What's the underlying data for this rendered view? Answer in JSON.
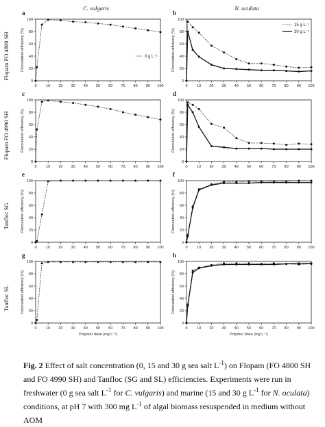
{
  "columns": [
    {
      "title": "C. vulgaris"
    },
    {
      "title": "N. oculata"
    }
  ],
  "rows": [
    {
      "label": "Flopam FO 4800 SH"
    },
    {
      "label": "Flopam FO 4990 SH"
    },
    {
      "label": "Tanfloc SG"
    },
    {
      "label": "Tanfloc SL"
    }
  ],
  "axes": {
    "ylabel": "Flocculation efficiency (%)",
    "xlabel": "Polymer dose (mg L⁻¹)",
    "x_ticks": [
      "0",
      "10",
      "20",
      "30",
      "40",
      "50",
      "60",
      "70",
      "80",
      "90",
      "100"
    ],
    "y_ticks": [
      "0",
      "20",
      "40",
      "60",
      "80",
      "100"
    ],
    "xlim": [
      0,
      100
    ],
    "ylim": [
      0,
      100
    ]
  },
  "legend_left": {
    "label": "0 g L⁻¹"
  },
  "legend_right": {
    "labels": [
      "15 g L⁻¹",
      "30 g L⁻¹"
    ]
  },
  "chart_data": [
    {
      "id": "a",
      "type": "line",
      "title": "C. vulgaris",
      "series": [
        {
          "name": "0 g L⁻¹",
          "style": "dotted",
          "x": [
            0,
            1,
            5,
            10,
            20,
            30,
            40,
            50,
            60,
            70,
            80,
            90,
            100
          ],
          "y": [
            0,
            22,
            91,
            99,
            98,
            96,
            95,
            93,
            91,
            88,
            85,
            82,
            79
          ]
        }
      ]
    },
    {
      "id": "b",
      "type": "line",
      "title": "N. oculata",
      "series": [
        {
          "name": "15 g L⁻¹",
          "style": "dotted",
          "x": [
            0,
            1,
            5,
            10,
            20,
            30,
            40,
            50,
            60,
            70,
            80,
            90,
            100
          ],
          "y": [
            0,
            96,
            87,
            78,
            57,
            46,
            35,
            28,
            28,
            26,
            23,
            21,
            22
          ]
        },
        {
          "name": "30 g L⁻¹",
          "style": "solid",
          "x": [
            0,
            1,
            5,
            10,
            20,
            30,
            40,
            50,
            60,
            70,
            80,
            90,
            100
          ],
          "y": [
            0,
            80,
            50,
            39,
            26,
            20,
            19,
            18,
            17,
            17,
            16,
            15,
            16
          ]
        }
      ]
    },
    {
      "id": "c",
      "type": "line",
      "series": [
        {
          "name": "0 g L⁻¹",
          "style": "dotted",
          "x": [
            0,
            1,
            5,
            10,
            20,
            30,
            40,
            50,
            60,
            70,
            80,
            90,
            100
          ],
          "y": [
            0,
            52,
            97,
            99,
            97,
            95,
            92,
            89,
            85,
            80,
            76,
            72,
            68
          ]
        }
      ]
    },
    {
      "id": "d",
      "type": "line",
      "series": [
        {
          "name": "15 g L⁻¹",
          "style": "dotted",
          "x": [
            0,
            1,
            5,
            10,
            20,
            30,
            40,
            50,
            60,
            70,
            80,
            90,
            100
          ],
          "y": [
            0,
            96,
            92,
            85,
            61,
            55,
            38,
            30,
            30,
            29,
            27,
            29,
            28
          ]
        },
        {
          "name": "30 g L⁻¹",
          "style": "solid",
          "x": [
            0,
            1,
            5,
            10,
            20,
            30,
            40,
            50,
            60,
            70,
            80,
            90,
            100
          ],
          "y": [
            0,
            92,
            80,
            56,
            25,
            23,
            21,
            21,
            21,
            20,
            20,
            20,
            20
          ]
        }
      ]
    },
    {
      "id": "e",
      "type": "line",
      "series": [
        {
          "name": "0 g L⁻¹",
          "style": "dotted",
          "x": [
            0,
            1,
            5,
            10,
            20,
            30,
            40,
            50,
            60,
            70,
            80,
            90,
            100
          ],
          "y": [
            0,
            2,
            45,
            99,
            100,
            100,
            100,
            100,
            100,
            100,
            100,
            100,
            100
          ]
        }
      ]
    },
    {
      "id": "f",
      "type": "line",
      "series": [
        {
          "name": "15 g L⁻¹",
          "style": "dotted",
          "x": [
            0,
            1,
            5,
            10,
            20,
            30,
            40,
            50,
            60,
            70,
            80,
            90,
            100
          ],
          "y": [
            0,
            12,
            58,
            86,
            94,
            98,
            98,
            99,
            99,
            99,
            99,
            100,
            100
          ]
        },
        {
          "name": "30 g L⁻¹",
          "style": "solid",
          "x": [
            0,
            1,
            5,
            10,
            20,
            30,
            40,
            50,
            60,
            70,
            80,
            90,
            100
          ],
          "y": [
            0,
            10,
            56,
            85,
            93,
            96,
            96,
            96,
            97,
            97,
            97,
            97,
            97
          ]
        }
      ]
    },
    {
      "id": "g",
      "type": "line",
      "series": [
        {
          "name": "0 g L⁻¹",
          "style": "dotted",
          "x": [
            0,
            1,
            5,
            10,
            20,
            30,
            40,
            50,
            60,
            70,
            80,
            90,
            100
          ],
          "y": [
            0,
            5,
            97,
            99,
            99,
            99,
            99,
            99,
            99,
            99,
            99,
            99,
            99
          ]
        }
      ]
    },
    {
      "id": "h",
      "type": "line",
      "series": [
        {
          "name": "15 g L⁻¹",
          "style": "dotted",
          "x": [
            0,
            1,
            5,
            10,
            20,
            30,
            40,
            50,
            60,
            70,
            80,
            90,
            100
          ],
          "y": [
            0,
            30,
            85,
            90,
            94,
            97,
            97,
            97,
            96,
            97,
            96,
            95,
            96
          ]
        },
        {
          "name": "30 g L⁻¹",
          "style": "solid",
          "x": [
            0,
            1,
            5,
            10,
            20,
            30,
            40,
            50,
            60,
            70,
            80,
            90,
            100
          ],
          "y": [
            0,
            28,
            82,
            89,
            93,
            95,
            95,
            95,
            95,
            95,
            96,
            97,
            97
          ]
        }
      ]
    }
  ],
  "caption": {
    "fig_label": "Fig. 2",
    "segments": [
      {
        "t": " Effect of salt concentration (0, 15 and 30 g sea salt L"
      },
      {
        "sup": "-1"
      },
      {
        "t": ") on Flopam (FO 4800 SH and FO 4990 SH) and Tanfloc (SG and SL) efficiencies. Experiments were run in freshwater (0 g sea salt L"
      },
      {
        "sup": "-1"
      },
      {
        "t": " for "
      },
      {
        "i": "C. vulgaris"
      },
      {
        "t": ") and marine (15 and 30 g L"
      },
      {
        "sup": "-1"
      },
      {
        "t": " for "
      },
      {
        "i": "N. oculata"
      },
      {
        "t": ") conditions, at pH 7 with 300 mg L"
      },
      {
        "sup": "-1"
      },
      {
        "t": " of algal biomass resuspended in medium without AOM"
      }
    ]
  }
}
